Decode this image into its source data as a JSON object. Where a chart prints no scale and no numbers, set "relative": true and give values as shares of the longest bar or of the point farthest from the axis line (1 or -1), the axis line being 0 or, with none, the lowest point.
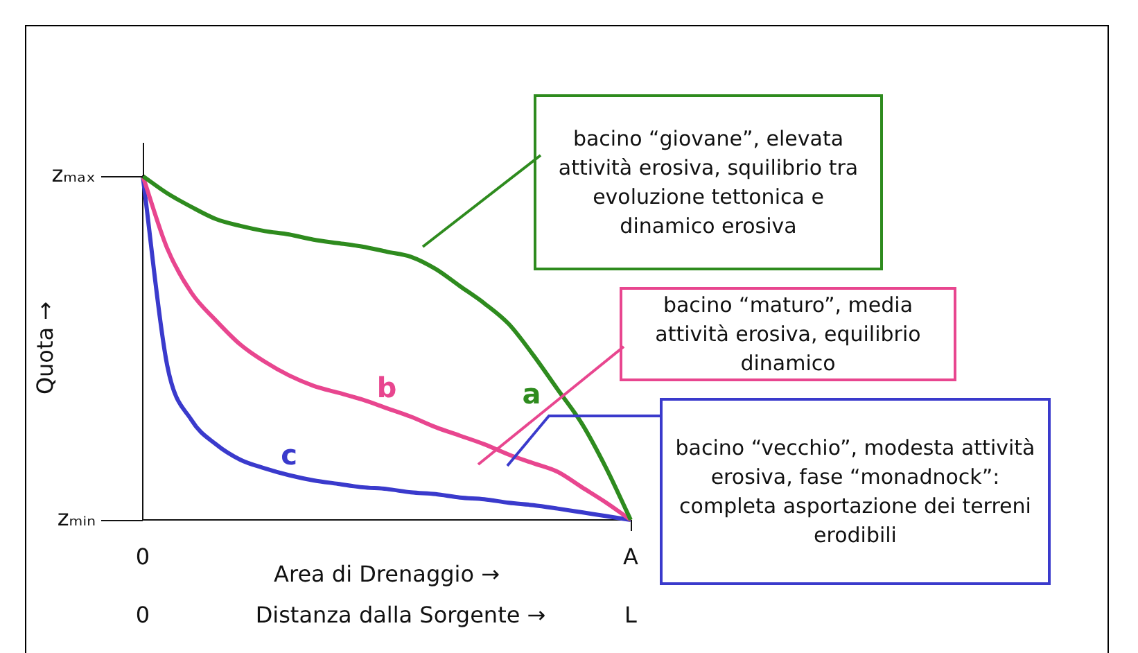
{
  "chart_data": {
    "type": "line",
    "relative": true,
    "ylabel": "Quota →",
    "xlabel": "Area di Drenaggio →",
    "categories": [
      null,
      null,
      null,
      null,
      null,
      null,
      null,
      null,
      null,
      null,
      null,
      null,
      null,
      null,
      null,
      null,
      null,
      null,
      null,
      null,
      null
    ],
    "legend": false,
    "marker": "none",
    "line_style": "solid",
    "series": [
      {
        "name": "a",
        "color": "#2e8b1e",
        "values": [
          1,
          0.95,
          0.91,
          0.875,
          0.855,
          0.84,
          0.83,
          0.815,
          0.805,
          0.795,
          0.78,
          0.765,
          0.73,
          0.68,
          0.63,
          0.57,
          0.48,
          0.38,
          0.28,
          0.15,
          0
        ]
      },
      {
        "name": "b",
        "color": "#e8468f",
        "values": [
          1,
          0.79,
          0.66,
          0.58,
          0.51,
          0.46,
          0.42,
          0.39,
          0.37,
          0.35,
          0.325,
          0.3,
          0.27,
          0.245,
          0.22,
          0.19,
          0.165,
          0.14,
          0.095,
          0.05,
          0
        ]
      },
      {
        "name": "c",
        "color": "#3a3acc",
        "values": [
          1,
          0.45,
          0.29,
          0.22,
          0.175,
          0.15,
          0.13,
          0.115,
          0.105,
          0.095,
          0.09,
          0.08,
          0.075,
          0.065,
          0.06,
          0.05,
          0.043,
          0.033,
          0.022,
          0.011,
          0
        ]
      }
    ],
    "annotations": [
      "bacino “giovane”, elevata attività erosiva, squilibrio tra evoluzione tettonica e dinamico erosiva",
      "bacino “maturo”, media attività erosiva, equilibrio dinamico",
      "bacino “vecchio”, modesta attività erosiva, fase “monadnock”: completa asportazione dei terreni erodibili",
      "zₘₐₓ",
      "zₘᵢₙ",
      "0",
      "A",
      "0",
      "L",
      "Distanza dalla Sorgente →"
    ]
  }
}
